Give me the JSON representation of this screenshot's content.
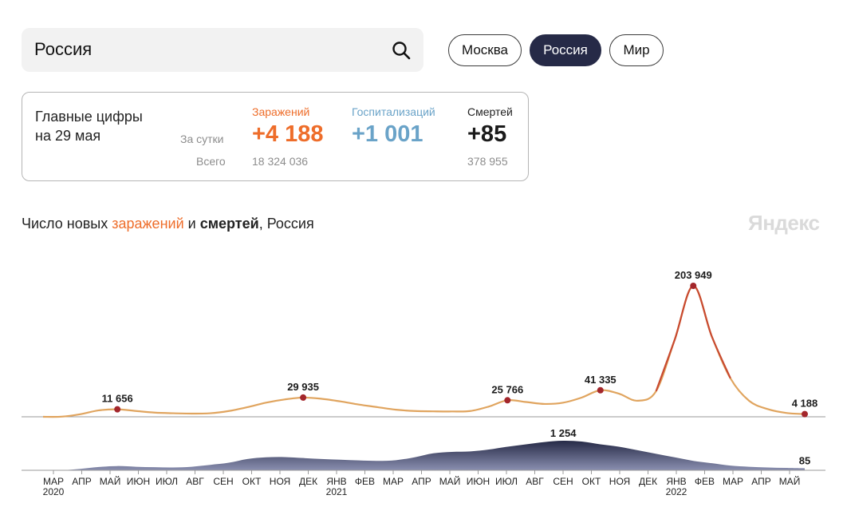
{
  "search": {
    "value": "Россия"
  },
  "region_tabs": [
    {
      "label": "Москва",
      "active": false
    },
    {
      "label": "Россия",
      "active": true
    },
    {
      "label": "Мир",
      "active": false
    }
  ],
  "summary": {
    "title_line1": "Главные цифры",
    "title_line2": "на 29 мая",
    "per_day_label": "За сутки",
    "total_label": "Всего",
    "columns": [
      {
        "head": "Заражений",
        "per_day": "+4 188",
        "total": "18 324 036",
        "color": "#ee6d2a"
      },
      {
        "head": "Госпитализаций",
        "per_day": "+1 001",
        "total": "",
        "color": "#6aa3c8"
      },
      {
        "head": "Смертей",
        "per_day": "+85",
        "total": "378 955",
        "color": "#1b1b1b"
      }
    ]
  },
  "chart_heading": {
    "prefix": "Число новых ",
    "infections": "заражений",
    "middle": " и ",
    "deaths": "смертей",
    "suffix": ", Россия"
  },
  "logo": "Яндекс",
  "colors": {
    "infections": "#e8b265",
    "infections_peak": "#c0342b",
    "deaths": "#353a5c",
    "marker": "#a3262b",
    "accent": "#ee6d2a"
  },
  "chart_data": {
    "type": "area",
    "x_ticks": [
      "МАР",
      "АПР",
      "МАЙ",
      "ИЮН",
      "ИЮЛ",
      "АВГ",
      "СЕН",
      "ОКТ",
      "НОЯ",
      "ДЕК",
      "ЯНВ",
      "ФЕВ",
      "МАР",
      "АПР",
      "МАЙ",
      "ИЮН",
      "ИЮЛ",
      "АВГ",
      "СЕН",
      "ОКТ",
      "НОЯ",
      "ДЕК",
      "ЯНВ",
      "ФЕВ",
      "МАР",
      "АПР",
      "МАЙ"
    ],
    "year_labels": [
      {
        "text": "2020",
        "tick_index": 0
      },
      {
        "text": "2021",
        "tick_index": 10
      },
      {
        "text": "2022",
        "tick_index": 22
      }
    ],
    "series": [
      {
        "name": "заражений",
        "y": [
          0,
          200,
          4000,
          10000,
          11656,
          9000,
          6500,
          5500,
          5000,
          5500,
          9000,
          15000,
          22000,
          27000,
          29935,
          28000,
          24000,
          19000,
          15000,
          11000,
          9000,
          8500,
          8300,
          9000,
          16000,
          25766,
          23000,
          20000,
          22000,
          30000,
          41335,
          36000,
          25000,
          40000,
          120000,
          203949,
          125000,
          60000,
          25000,
          12000,
          6000,
          4188
        ],
        "labels": [
          {
            "index": 4,
            "text": "11 656"
          },
          {
            "index": 14,
            "text": "29 935"
          },
          {
            "index": 25,
            "text": "25 766"
          },
          {
            "index": 30,
            "text": "41 335"
          },
          {
            "index": 35,
            "text": "203 949"
          },
          {
            "index": 41,
            "text": "4 188"
          }
        ]
      },
      {
        "name": "смертей",
        "y": [
          0,
          5,
          60,
          140,
          180,
          150,
          130,
          120,
          150,
          230,
          320,
          480,
          550,
          560,
          520,
          480,
          450,
          420,
          400,
          430,
          550,
          720,
          780,
          800,
          880,
          1000,
          1100,
          1200,
          1254,
          1220,
          1100,
          1000,
          850,
          700,
          550,
          400,
          300,
          200,
          150,
          120,
          100,
          85
        ],
        "labels": [
          {
            "index": 28,
            "text": "1 254"
          },
          {
            "index": 41,
            "text": "85"
          }
        ]
      }
    ]
  }
}
